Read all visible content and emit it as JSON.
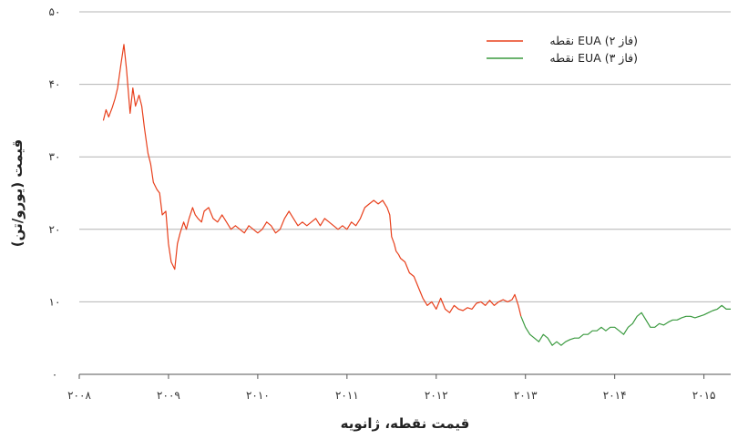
{
  "chart_data": {
    "type": "line",
    "title": "",
    "xlabel": "قیمت نقطه، ژانویه",
    "ylabel": "قیمت (یورو/تن)",
    "xlim": [
      2008.0,
      2015.3
    ],
    "ylim": [
      0,
      50
    ],
    "grid": true,
    "legend_position": "top-right",
    "x_ticks": [
      2008,
      2009,
      2010,
      2011,
      2012,
      2013,
      2014,
      2015
    ],
    "x_tick_labels": [
      "۲۰۰۸",
      "۲۰۰۹",
      "۲۰۱۰",
      "۲۰۱۱",
      "۲۰۱۲",
      "۲۰۱۳",
      "۲۰۱۴",
      "۲۰۱۵"
    ],
    "y_ticks": [
      0,
      10,
      20,
      30,
      40,
      50
    ],
    "y_tick_labels": [
      "۰",
      "۱۰",
      "۲۰",
      "۳۰",
      "۴۰",
      "۵۰"
    ],
    "series": [
      {
        "name": "نقطه EUA (فاز ۲)",
        "color": "#e8401c",
        "x": [
          2008.27,
          2008.3,
          2008.33,
          2008.37,
          2008.4,
          2008.43,
          2008.47,
          2008.5,
          2008.53,
          2008.57,
          2008.6,
          2008.63,
          2008.67,
          2008.7,
          2008.73,
          2008.77,
          2008.8,
          2008.83,
          2008.87,
          2008.9,
          2008.93,
          2008.97,
          2009.0,
          2009.03,
          2009.07,
          2009.1,
          2009.13,
          2009.17,
          2009.2,
          2009.23,
          2009.27,
          2009.3,
          2009.33,
          2009.37,
          2009.4,
          2009.45,
          2009.5,
          2009.55,
          2009.6,
          2009.65,
          2009.7,
          2009.75,
          2009.8,
          2009.85,
          2009.9,
          2009.95,
          2010.0,
          2010.05,
          2010.1,
          2010.15,
          2010.2,
          2010.25,
          2010.3,
          2010.35,
          2010.4,
          2010.45,
          2010.5,
          2010.55,
          2010.6,
          2010.65,
          2010.7,
          2010.75,
          2010.8,
          2010.85,
          2010.9,
          2010.95,
          2011.0,
          2011.05,
          2011.1,
          2011.15,
          2011.2,
          2011.25,
          2011.3,
          2011.35,
          2011.4,
          2011.45,
          2011.48,
          2011.5,
          2011.53,
          2011.55,
          2011.58,
          2011.6,
          2011.65,
          2011.7,
          2011.75,
          2011.8,
          2011.85,
          2011.9,
          2011.95,
          2012.0,
          2012.05,
          2012.1,
          2012.15,
          2012.2,
          2012.25,
          2012.3,
          2012.35,
          2012.4,
          2012.45,
          2012.5,
          2012.55,
          2012.6,
          2012.65,
          2012.7,
          2012.75,
          2012.8,
          2012.85,
          2012.88,
          2012.92,
          2012.95
        ],
        "y": [
          35.0,
          36.5,
          35.5,
          36.8,
          38.0,
          39.5,
          43.0,
          45.5,
          42.0,
          36.0,
          39.5,
          37.0,
          38.5,
          37.0,
          34.0,
          30.5,
          29.0,
          26.5,
          25.5,
          25.0,
          22.0,
          22.5,
          18.0,
          15.5,
          14.5,
          18.0,
          19.5,
          21.0,
          20.0,
          21.5,
          23.0,
          22.0,
          21.5,
          21.0,
          22.5,
          23.0,
          21.5,
          21.0,
          22.0,
          21.0,
          20.0,
          20.5,
          20.0,
          19.5,
          20.5,
          20.0,
          19.5,
          20.0,
          21.0,
          20.5,
          19.5,
          20.0,
          21.5,
          22.5,
          21.5,
          20.5,
          21.0,
          20.5,
          21.0,
          21.5,
          20.5,
          21.5,
          21.0,
          20.5,
          20.0,
          20.5,
          20.0,
          21.0,
          20.5,
          21.5,
          23.0,
          23.5,
          24.0,
          23.5,
          24.0,
          23.0,
          22.0,
          19.0,
          18.0,
          17.0,
          16.5,
          16.0,
          15.5,
          14.0,
          13.5,
          12.0,
          10.5,
          9.5,
          10.0,
          9.0,
          10.5,
          9.0,
          8.5,
          9.5,
          9.0,
          8.8,
          9.2,
          9.0,
          9.8,
          10.0,
          9.5,
          10.2,
          9.5,
          10.0,
          10.3,
          10.0,
          10.3,
          11.0,
          9.5,
          8.0
        ]
      },
      {
        "name": "نقطه EUA (فاز ۳)",
        "color": "#3a9a3f",
        "x": [
          2012.95,
          2013.0,
          2013.05,
          2013.1,
          2013.15,
          2013.2,
          2013.25,
          2013.3,
          2013.35,
          2013.4,
          2013.45,
          2013.5,
          2013.55,
          2013.6,
          2013.65,
          2013.7,
          2013.75,
          2013.8,
          2013.85,
          2013.9,
          2013.95,
          2014.0,
          2014.05,
          2014.1,
          2014.15,
          2014.2,
          2014.25,
          2014.3,
          2014.35,
          2014.4,
          2014.45,
          2014.5,
          2014.55,
          2014.6,
          2014.65,
          2014.7,
          2014.75,
          2014.8,
          2014.85,
          2014.9,
          2014.95,
          2015.0,
          2015.05,
          2015.1,
          2015.15,
          2015.2,
          2015.25,
          2015.3
        ],
        "y": [
          8.0,
          6.5,
          5.5,
          5.0,
          4.5,
          5.5,
          5.0,
          4.0,
          4.5,
          4.0,
          4.5,
          4.8,
          5.0,
          5.0,
          5.5,
          5.5,
          6.0,
          6.0,
          6.5,
          6.0,
          6.5,
          6.5,
          6.0,
          5.5,
          6.5,
          7.0,
          8.0,
          8.5,
          7.5,
          6.5,
          6.5,
          7.0,
          6.8,
          7.2,
          7.5,
          7.5,
          7.8,
          8.0,
          8.0,
          7.8,
          8.0,
          8.2,
          8.5,
          8.8,
          9.0,
          9.5,
          9.0,
          9.0
        ]
      }
    ]
  }
}
